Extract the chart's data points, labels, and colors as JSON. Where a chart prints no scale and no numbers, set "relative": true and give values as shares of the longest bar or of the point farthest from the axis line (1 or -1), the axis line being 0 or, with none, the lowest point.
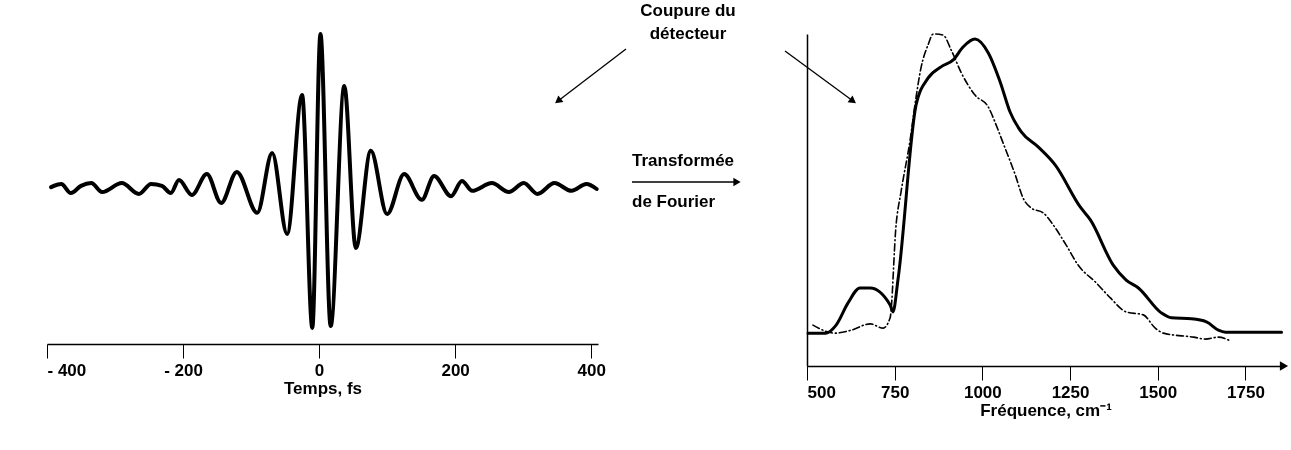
{
  "chart_data": [
    {
      "type": "line",
      "relative": true,
      "xlabel": "Temps, fs",
      "xlim": [
        -400,
        410
      ],
      "xticks": [
        {
          "value": -400,
          "label": "- 400"
        },
        {
          "value": -200,
          "label": "- 200"
        },
        0,
        200,
        400
      ],
      "tick_labels": "x",
      "grid": false,
      "marker": "none",
      "annotations": [
        "Transformée de Fourier"
      ],
      "series": [
        {
          "color": "#000000",
          "line_style": "solid",
          "x": [
            -394,
            -379,
            -365,
            -350,
            -335,
            -319,
            -290,
            -265,
            -247,
            -231,
            -218,
            -206,
            -187,
            -165,
            -144,
            -121,
            -91,
            -69,
            -47,
            -25,
            -10,
            2,
            17,
            37,
            54,
            76,
            100,
            125,
            151,
            169,
            194,
            210,
            225,
            254,
            279,
            301,
            321,
            346,
            371,
            393,
            408
          ],
          "values": [
            0.506,
            0.516,
            0.487,
            0.51,
            0.519,
            0.49,
            0.519,
            0.484,
            0.516,
            0.51,
            0.487,
            0.529,
            0.481,
            0.548,
            0.455,
            0.555,
            0.423,
            0.616,
            0.355,
            0.803,
            0.052,
            1.0,
            0.058,
            0.832,
            0.31,
            0.623,
            0.419,
            0.548,
            0.465,
            0.542,
            0.477,
            0.526,
            0.494,
            0.519,
            0.49,
            0.519,
            0.484,
            0.519,
            0.494,
            0.516,
            0.5
          ]
        }
      ]
    },
    {
      "type": "line",
      "relative": true,
      "xlabel": "Fréquence, cm⁻¹",
      "xlim": [
        500,
        1860
      ],
      "xticks": [
        500,
        750,
        1000,
        1250,
        1500,
        1750
      ],
      "tick_labels": "x",
      "grid": false,
      "marker": "none",
      "annotations": [
        "Coupure du détecteur"
      ],
      "series": [
        {
          "color": "#000000",
          "line_style": "solid",
          "x": [
            503,
            554,
            583,
            617,
            651,
            680,
            737,
            745,
            760,
            811,
            845,
            882,
            917,
            945,
            979,
            1017,
            1051,
            1079,
            1111,
            1159,
            1208,
            1279,
            1308,
            1373,
            1410,
            1445,
            1510,
            1539,
            1596,
            1639,
            1673,
            1693,
            1853
          ],
          "values": [
            0.099,
            0.099,
            0.123,
            0.19,
            0.235,
            0.235,
            0.184,
            0.163,
            0.265,
            0.786,
            0.867,
            0.901,
            0.922,
            0.961,
            0.985,
            0.943,
            0.855,
            0.765,
            0.705,
            0.66,
            0.605,
            0.479,
            0.44,
            0.304,
            0.259,
            0.235,
            0.16,
            0.145,
            0.142,
            0.133,
            0.108,
            0.102,
            0.102
          ]
        },
        {
          "color": "#000000",
          "line_style": "dashed",
          "x": [
            517,
            580,
            626,
            680,
            717,
            737,
            754,
            768,
            794,
            811,
            825,
            845,
            860,
            888,
            911,
            940,
            979,
            1017,
            1037,
            1059,
            1094,
            1116,
            1139,
            1174,
            1202,
            1239,
            1273,
            1325,
            1365,
            1410,
            1459,
            1493,
            1516,
            1602,
            1636,
            1673,
            1702
          ],
          "values": [
            0.123,
            0.099,
            0.108,
            0.127,
            0.114,
            0.145,
            0.425,
            0.524,
            0.681,
            0.81,
            0.898,
            0.967,
            1.0,
            0.997,
            0.952,
            0.883,
            0.816,
            0.78,
            0.732,
            0.672,
            0.575,
            0.506,
            0.476,
            0.461,
            0.425,
            0.364,
            0.304,
            0.25,
            0.205,
            0.163,
            0.154,
            0.114,
            0.099,
            0.087,
            0.081,
            0.087,
            0.078
          ]
        }
      ]
    }
  ]
}
